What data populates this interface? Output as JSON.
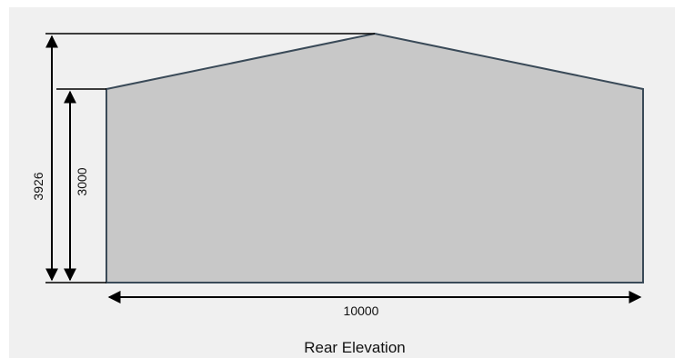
{
  "drawing": {
    "title": "Rear Elevation",
    "dimensions": {
      "overall_height": "3926",
      "eave_height": "3000",
      "width": "10000"
    },
    "colors": {
      "background": "#f0f0f0",
      "fill": "#c8c8c8",
      "outline": "#3a4a58",
      "line": "#000000"
    }
  }
}
